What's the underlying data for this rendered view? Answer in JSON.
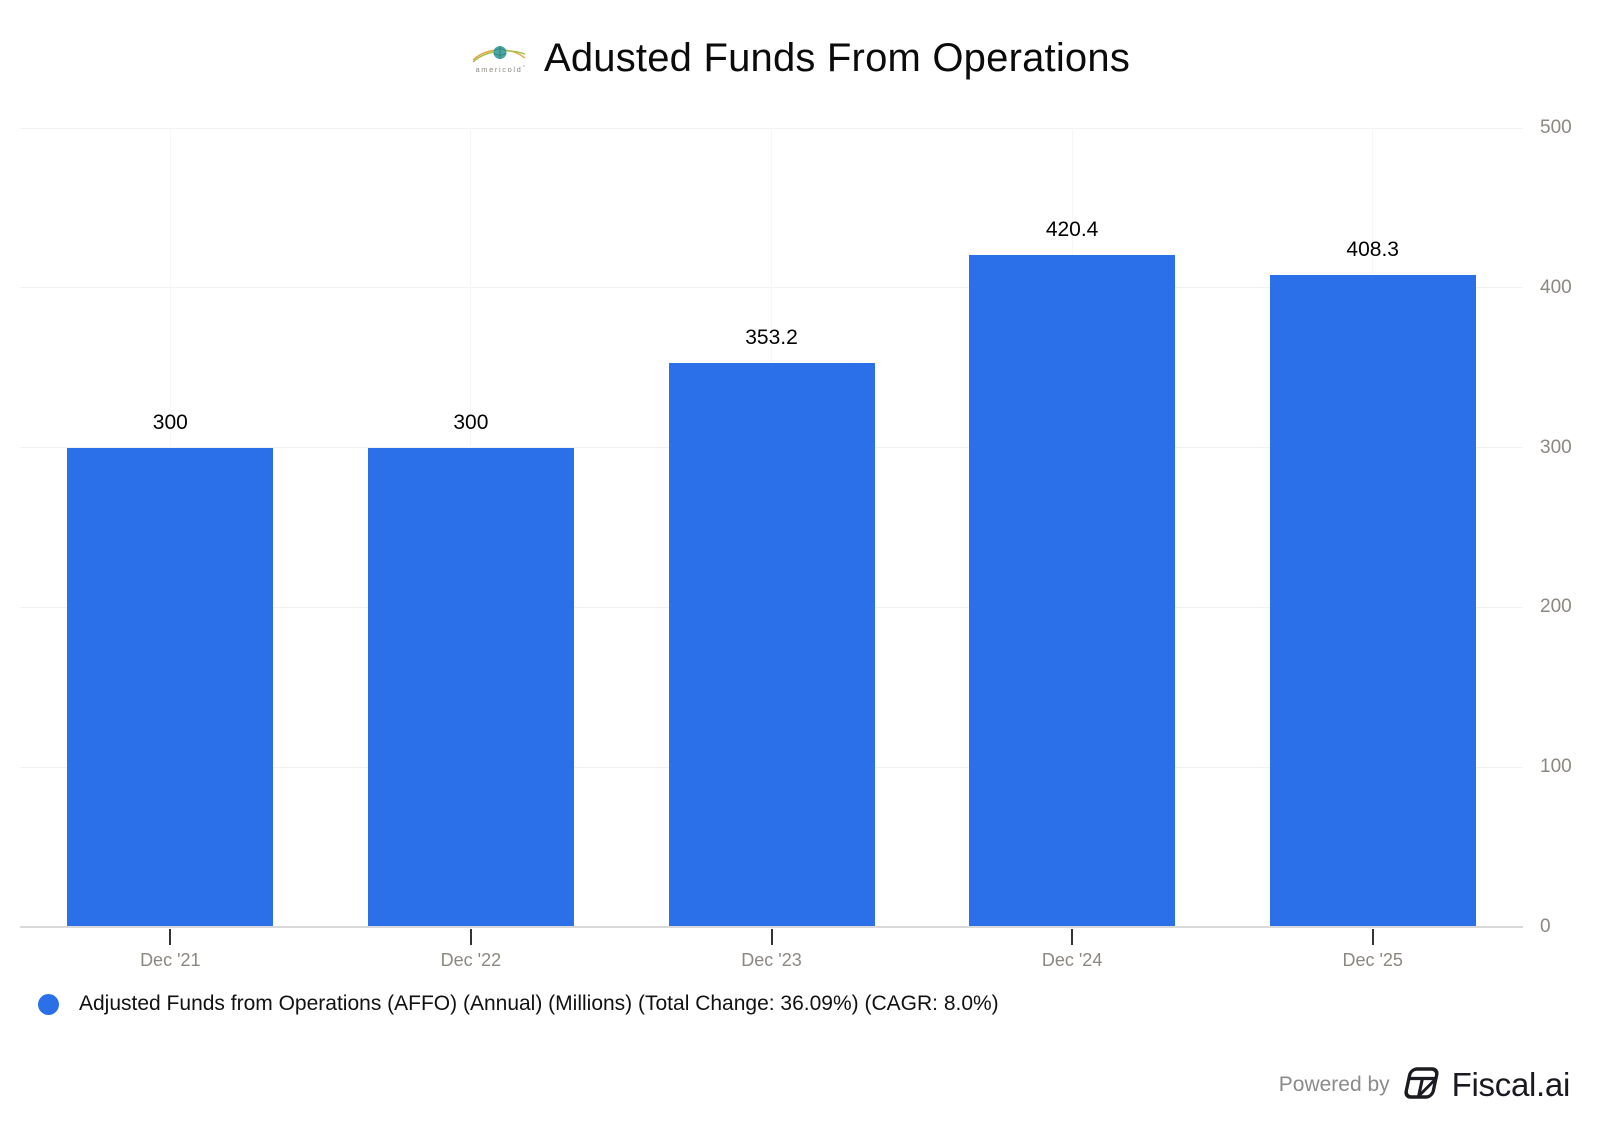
{
  "header": {
    "title": "Adusted Funds From Operations",
    "logo_text": "americold"
  },
  "chart_data": {
    "type": "bar",
    "title": "Adusted Funds From Operations",
    "categories": [
      "Dec '21",
      "Dec '22",
      "Dec '23",
      "Dec '24",
      "Dec '25"
    ],
    "values": [
      300,
      300,
      353.2,
      420.4,
      408.3
    ],
    "data_labels": [
      "300",
      "300",
      "353.2",
      "420.4",
      "408.3"
    ],
    "xlabel": "",
    "ylabel": "",
    "ylim": [
      0,
      500
    ],
    "yticks": [
      0,
      100,
      200,
      300,
      400,
      500
    ],
    "grid": true,
    "legend_position": "bottom-left",
    "bar_color": "#2b70e8"
  },
  "legend": {
    "marker_color": "#2b70e8",
    "label": "Adjusted Funds from Operations (AFFO) (Annual) (Millions) (Total Change: 36.09%) (CAGR: 8.0%)"
  },
  "footer": {
    "powered_by": "Powered by",
    "brand": "Fiscal.ai"
  },
  "colors": {
    "bar": "#2b70e8",
    "axis_line": "#d9d9d9",
    "tick": "#333333",
    "axis_label": "#8c8780",
    "gridline": "#f2f2f2"
  }
}
